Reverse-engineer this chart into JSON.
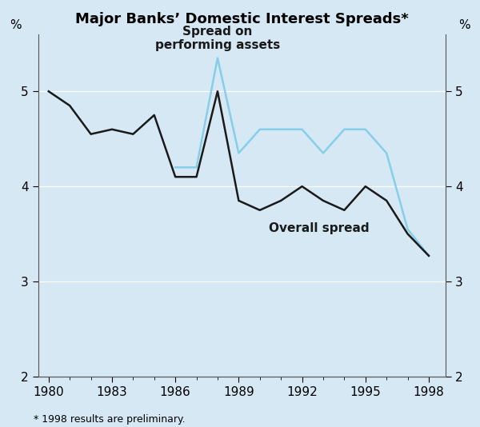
{
  "title": "Major Banks’ Domestic Interest Spreads*",
  "footnote": "* 1998 results are preliminary.",
  "background_color": "#d5e8f4",
  "ylim": [
    2,
    5.6
  ],
  "yticks": [
    2,
    3,
    4,
    5
  ],
  "xlim": [
    1979.5,
    1998.8
  ],
  "xticks": [
    1980,
    1983,
    1986,
    1989,
    1992,
    1995,
    1998
  ],
  "overall_spread_x": [
    1980,
    1981,
    1982,
    1983,
    1984,
    1985,
    1986,
    1987,
    1988,
    1989,
    1990,
    1991,
    1992,
    1993,
    1994,
    1995,
    1996,
    1997,
    1998
  ],
  "overall_spread_y": [
    5.0,
    4.85,
    4.55,
    4.6,
    4.55,
    4.75,
    4.1,
    4.1,
    5.0,
    3.85,
    3.75,
    3.85,
    4.0,
    3.85,
    3.75,
    4.0,
    3.85,
    3.5,
    3.27
  ],
  "spread_performing_x": [
    1986,
    1987,
    1988,
    1989,
    1990,
    1991,
    1992,
    1993,
    1994,
    1995,
    1996,
    1997,
    1998
  ],
  "spread_performing_y": [
    4.2,
    4.2,
    5.35,
    4.35,
    4.6,
    4.6,
    4.6,
    4.35,
    4.6,
    4.6,
    4.35,
    3.55,
    3.27
  ],
  "overall_color": "#1a1a1a",
  "performing_color": "#87CEEB",
  "linewidth": 1.8,
  "title_fontsize": 13,
  "tick_fontsize": 11,
  "annot_fontsize": 11,
  "footnote_fontsize": 9,
  "pct_label_fontsize": 11
}
